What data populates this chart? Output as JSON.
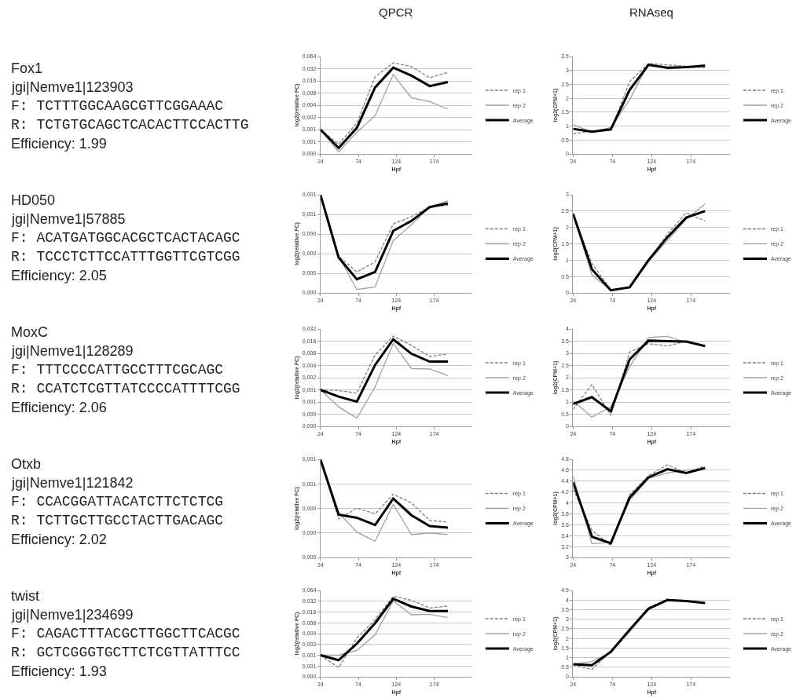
{
  "chart_data": [
    {
      "type": "line",
      "title": "QPCR",
      "xlabel": "Hpf",
      "ylabel": "log2(relative FC)",
      "log": true,
      "grid": "y",
      "legend": "right",
      "x": [
        24,
        48,
        72,
        96,
        120,
        144,
        168,
        192
      ],
      "xlim": [
        24,
        224
      ],
      "xticks": [
        24,
        74,
        124,
        174
      ],
      "ylim": [
        0.00025,
        0.064
      ],
      "yticks": [
        {
          "value": 0.00025,
          "label": "0,000"
        },
        {
          "value": 0.0005,
          "label": "0,001"
        },
        {
          "value": 0.001,
          "label": "0,001"
        },
        {
          "value": 0.002,
          "label": "0,002"
        },
        {
          "value": 0.004,
          "label": "0,004"
        },
        {
          "value": 0.008,
          "label": "0,008"
        },
        {
          "value": 0.016,
          "label": "0,016"
        },
        {
          "value": 0.032,
          "label": "0,032"
        },
        {
          "value": 0.064,
          "label": "0,064"
        }
      ],
      "annotations": [
        "Fox1",
        "jgi|Nemve1|123903",
        "F: TCTTTGGCAAGCGTTCGGAAAC",
        "R: TCTGTGCAGCTCACACTTCCACTTG",
        "Efficiency: 1.99"
      ],
      "series": [
        {
          "name": "rep 1",
          "color": "#7f7f7f",
          "line_style": "dashed",
          "values": [
            0.001,
            0.00043,
            0.00145,
            0.02,
            0.045,
            0.036,
            0.019,
            0.026
          ]
        },
        {
          "name": "rep 2",
          "color": "#a0a0a0",
          "line_style": "solid",
          "values": [
            0.001,
            0.00028,
            0.00086,
            0.0022,
            0.0228,
            0.0061,
            0.0049,
            0.0032
          ]
        },
        {
          "name": "Average",
          "color": "#000000",
          "line_style": "solid",
          "values": [
            0.001,
            0.00035,
            0.0011,
            0.011,
            0.034,
            0.0215,
            0.0119,
            0.0149
          ]
        }
      ]
    },
    {
      "type": "line",
      "title": "RNAseq",
      "xlabel": "Hpf",
      "ylabel": "log2(CPM+1)",
      "grid": "y",
      "legend": "right",
      "x": [
        24,
        48,
        72,
        96,
        120,
        144,
        168,
        192
      ],
      "xlim": [
        24,
        224
      ],
      "xticks": [
        24,
        74,
        124,
        174
      ],
      "ylim": [
        0,
        3.5
      ],
      "yticks": [
        0,
        0.5,
        1,
        1.5,
        2,
        2.5,
        3,
        3.5
      ],
      "series": [
        {
          "name": "rep 1",
          "color": "#7f7f7f",
          "line_style": "dashed",
          "values": [
            0.72,
            0.82,
            0.85,
            2.6,
            3.25,
            3.2,
            3.15,
            3.1
          ]
        },
        {
          "name": "rep 2",
          "color": "#a0a0a0",
          "line_style": "solid",
          "values": [
            1.05,
            0.78,
            0.95,
            1.95,
            3.25,
            3.05,
            3.1,
            3.22
          ]
        },
        {
          "name": "Average",
          "color": "#000000",
          "line_style": "solid",
          "values": [
            0.9,
            0.8,
            0.88,
            2.3,
            3.2,
            3.1,
            3.12,
            3.17
          ]
        }
      ]
    },
    {
      "type": "line",
      "xlabel": "Hpf",
      "ylabel": "log2(relative FC)",
      "log": true,
      "grid": "y",
      "legend": "right",
      "x": [
        24,
        48,
        72,
        96,
        120,
        144,
        168,
        192
      ],
      "xlim": [
        24,
        224
      ],
      "xticks": [
        24,
        74,
        124,
        174
      ],
      "ylim": [
        3.125e-05,
        0.001
      ],
      "yticks": [
        {
          "value": 3.125e-05,
          "label": "0,000"
        },
        {
          "value": 6.25e-05,
          "label": "0,000"
        },
        {
          "value": 0.000125,
          "label": "0,000"
        },
        {
          "value": 0.00025,
          "label": "0,000"
        },
        {
          "value": 0.0005,
          "label": "0,001"
        },
        {
          "value": 0.001,
          "label": "0,001"
        }
      ],
      "annotations": [
        "HD050",
        "jgi|Nemve1|57885",
        "F: ACATGATGGCACGCTCACTACAGC",
        "R: TCCCTCTTCCATTTGGTTCGTCGG",
        "Efficiency: 2.05"
      ],
      "series": [
        {
          "name": "rep 1",
          "color": "#7f7f7f",
          "line_style": "dashed",
          "values": [
            0.001,
            0.000114,
            6.55e-05,
            9.29e-05,
            0.000355,
            0.000464,
            0.000647,
            0.00069
          ]
        },
        {
          "name": "rep 2",
          "color": "#a0a0a0",
          "line_style": "solid",
          "values": [
            0.001,
            0.000114,
            3.52e-05,
            3.86e-05,
            0.000199,
            0.000346,
            0.000647,
            0.000807
          ]
        },
        {
          "name": "Average",
          "color": "#000000",
          "line_style": "solid",
          "values": [
            0.001,
            0.000109,
            5.06e-05,
            6.55e-05,
            0.000279,
            0.000397,
            0.000647,
            0.000737
          ]
        }
      ]
    },
    {
      "type": "line",
      "xlabel": "Hpf",
      "ylabel": "log2(CPM+1)",
      "grid": "y",
      "legend": "right",
      "x": [
        24,
        48,
        72,
        96,
        120,
        144,
        168,
        192
      ],
      "xlim": [
        24,
        224
      ],
      "xticks": [
        24,
        74,
        124,
        174
      ],
      "ylim": [
        0,
        3
      ],
      "yticks": [
        0,
        0.5,
        1,
        1.5,
        2,
        2.5,
        3
      ],
      "series": [
        {
          "name": "rep 1",
          "color": "#7f7f7f",
          "line_style": "dashed",
          "values": [
            2.4,
            0.9,
            0.1,
            0.18,
            1.0,
            1.8,
            2.45,
            2.2
          ]
        },
        {
          "name": "rep 2",
          "color": "#a0a0a0",
          "line_style": "solid",
          "values": [
            2.4,
            0.55,
            0.08,
            0.18,
            0.95,
            1.6,
            2.25,
            2.72
          ]
        },
        {
          "name": "Average",
          "color": "#000000",
          "line_style": "solid",
          "values": [
            2.42,
            0.72,
            0.08,
            0.17,
            1.0,
            1.7,
            2.3,
            2.5
          ]
        }
      ]
    },
    {
      "type": "line",
      "xlabel": "Hpf",
      "ylabel": "log2(relative FC)",
      "log": true,
      "grid": "y",
      "legend": "right",
      "x": [
        24,
        48,
        72,
        96,
        120,
        144,
        168,
        192
      ],
      "xlim": [
        24,
        224
      ],
      "xticks": [
        24,
        74,
        124,
        174
      ],
      "ylim": [
        0.000125,
        0.032
      ],
      "yticks": [
        {
          "value": 0.000125,
          "label": "0,000"
        },
        {
          "value": 0.00025,
          "label": "0,000"
        },
        {
          "value": 0.0005,
          "label": "0,001"
        },
        {
          "value": 0.001,
          "label": "0,001"
        },
        {
          "value": 0.002,
          "label": "0,002"
        },
        {
          "value": 0.004,
          "label": "0,004"
        },
        {
          "value": 0.008,
          "label": "0,008"
        },
        {
          "value": 0.016,
          "label": "0,016"
        },
        {
          "value": 0.032,
          "label": "0,032"
        }
      ],
      "annotations": [
        "MoxC",
        "jgi|Nemve1|128289",
        "F: TTTCCCCATTGCCTTTCGCAGC",
        "R: CCATCTCGTTATCCCCATTTTCGG",
        "Efficiency: 2.06"
      ],
      "series": [
        {
          "name": "rep 1",
          "color": "#7f7f7f",
          "line_style": "dashed",
          "values": [
            0.001,
            0.00096,
            0.00083,
            0.0073,
            0.0214,
            0.0126,
            0.0067,
            0.0077
          ]
        },
        {
          "name": "rep 2",
          "color": "#a0a0a0",
          "line_style": "solid",
          "values": [
            0.001,
            0.00038,
            0.0002,
            0.00118,
            0.0141,
            0.00337,
            0.00327,
            0.00226
          ]
        },
        {
          "name": "Average",
          "color": "#000000",
          "line_style": "solid",
          "values": [
            0.001,
            0.00068,
            0.00051,
            0.0041,
            0.0177,
            0.0078,
            0.005,
            0.005
          ]
        }
      ]
    },
    {
      "type": "line",
      "xlabel": "Hpf",
      "ylabel": "log2(CPM+1)",
      "grid": "y",
      "legend": "right",
      "x": [
        24,
        48,
        72,
        96,
        120,
        144,
        168,
        192
      ],
      "xlim": [
        24,
        224
      ],
      "xticks": [
        24,
        74,
        124,
        174
      ],
      "ylim": [
        0,
        4
      ],
      "yticks": [
        0,
        0.5,
        1,
        1.5,
        2,
        2.5,
        3,
        3.5,
        4
      ],
      "series": [
        {
          "name": "rep 1",
          "color": "#7f7f7f",
          "line_style": "dashed",
          "values": [
            0.7,
            1.72,
            0.45,
            3.05,
            3.4,
            3.3,
            3.5,
            3.28
          ]
        },
        {
          "name": "rep 2",
          "color": "#a0a0a0",
          "line_style": "solid",
          "values": [
            1.05,
            0.38,
            0.8,
            2.45,
            3.65,
            3.7,
            3.45,
            3.3
          ]
        },
        {
          "name": "Average",
          "color": "#000000",
          "line_style": "solid",
          "values": [
            0.92,
            1.2,
            0.62,
            2.75,
            3.52,
            3.5,
            3.48,
            3.3
          ]
        }
      ]
    },
    {
      "type": "line",
      "xlabel": "Hpf",
      "ylabel": "log2(relative FC)",
      "log": true,
      "grid": "y",
      "legend": "right",
      "x": [
        24,
        48,
        72,
        96,
        120,
        144,
        168,
        192
      ],
      "xlim": [
        24,
        224
      ],
      "xticks": [
        24,
        74,
        124,
        174
      ],
      "ylim": [
        6.25e-05,
        0.001
      ],
      "yticks": [
        {
          "value": 6.25e-05,
          "label": "0,000"
        },
        {
          "value": 0.000125,
          "label": "0,000"
        },
        {
          "value": 0.00025,
          "label": "0,000"
        },
        {
          "value": 0.0005,
          "label": "0,001"
        },
        {
          "value": 0.001,
          "label": "0,001"
        }
      ],
      "annotations": [
        "Otxb",
        "jgi|Nemve1|121842",
        "F: CCACGGATTACATCTTCTCTCG",
        "R: TCTTGCTTGCCTACTTGACAGC",
        "Efficiency: 2.02"
      ],
      "series": [
        {
          "name": "rep 1",
          "color": "#7f7f7f",
          "line_style": "dashed",
          "values": [
            0.001,
            0.000185,
            0.000252,
            0.000214,
            0.000373,
            0.000292,
            0.000178,
            0.00017
          ]
        },
        {
          "name": "rep 2",
          "color": "#a0a0a0",
          "line_style": "solid",
          "values": [
            0.001,
            0.000222,
            0.000128,
            9.88e-05,
            0.000281,
            0.000119,
            0.000125,
            0.000119
          ]
        },
        {
          "name": "Average",
          "color": "#000000",
          "line_style": "solid",
          "values": [
            0.001,
            0.00021,
            0.000192,
            0.000156,
            0.00033,
            0.000206,
            0.000152,
            0.000145
          ]
        }
      ]
    },
    {
      "type": "line",
      "xlabel": "Hpf",
      "ylabel": "log2(CPM+1)",
      "grid": "y",
      "legend": "right",
      "x": [
        24,
        48,
        72,
        96,
        120,
        144,
        168,
        192
      ],
      "xlim": [
        24,
        224
      ],
      "xticks": [
        24,
        74,
        124,
        174
      ],
      "ylim": [
        3,
        4.8
      ],
      "yticks": [
        3,
        3.2,
        3.4,
        3.6,
        3.8,
        4,
        4.2,
        4.4,
        4.6,
        4.8
      ],
      "series": [
        {
          "name": "rep 1",
          "color": "#7f7f7f",
          "line_style": "dashed",
          "values": [
            4.25,
            3.5,
            3.22,
            4.15,
            4.5,
            4.7,
            4.55,
            4.68
          ]
        },
        {
          "name": "rep 2",
          "color": "#a0a0a0",
          "line_style": "solid",
          "values": [
            4.5,
            3.25,
            3.28,
            4.05,
            4.45,
            4.55,
            4.6,
            4.63
          ]
        },
        {
          "name": "Average",
          "color": "#000000",
          "line_style": "solid",
          "values": [
            4.38,
            3.38,
            3.26,
            4.1,
            4.47,
            4.62,
            4.55,
            4.64
          ]
        }
      ]
    },
    {
      "type": "line",
      "xlabel": "Hpf",
      "ylabel": "log2(relative FC)",
      "log": true,
      "grid": "y",
      "legend": "right",
      "x": [
        24,
        48,
        72,
        96,
        120,
        144,
        168,
        192
      ],
      "xlim": [
        24,
        224
      ],
      "xticks": [
        24,
        74,
        124,
        174
      ],
      "ylim": [
        0.00025,
        0.064
      ],
      "yticks": [
        {
          "value": 0.00025,
          "label": "0,000"
        },
        {
          "value": 0.0005,
          "label": "0,001"
        },
        {
          "value": 0.001,
          "label": "0,001"
        },
        {
          "value": 0.002,
          "label": "0,002"
        },
        {
          "value": 0.004,
          "label": "0,004"
        },
        {
          "value": 0.008,
          "label": "0,008"
        },
        {
          "value": 0.016,
          "label": "0,016"
        },
        {
          "value": 0.032,
          "label": "0,032"
        },
        {
          "value": 0.064,
          "label": "0,064"
        }
      ],
      "annotations": [
        "twist",
        "jgi|Nemve1|234699",
        "F: CAGACTTTACGCTTGGCTTCACGC",
        "R: GCTCGGGTGCTTCTCGTTATTTCC",
        "Efficiency: 1.93"
      ],
      "series": [
        {
          "name": "rep 1",
          "color": "#7f7f7f",
          "line_style": "dashed",
          "values": [
            0.001,
            0.00045,
            0.003,
            0.0097,
            0.044,
            0.034,
            0.0208,
            0.0235
          ]
        },
        {
          "name": "rep 2",
          "color": "#a0a0a0",
          "line_style": "solid",
          "values": [
            0.001,
            0.001,
            0.00136,
            0.0037,
            0.0325,
            0.0134,
            0.0138,
            0.0112
          ]
        },
        {
          "name": "Average",
          "color": "#000000",
          "line_style": "solid",
          "values": [
            0.001,
            0.00073,
            0.0021,
            0.0078,
            0.0376,
            0.0228,
            0.017,
            0.017
          ]
        }
      ]
    },
    {
      "type": "line",
      "xlabel": "Hpf",
      "ylabel": "log2(CPM+1)",
      "grid": "y",
      "legend": "right",
      "x": [
        24,
        48,
        72,
        96,
        120,
        144,
        168,
        192
      ],
      "xlim": [
        24,
        224
      ],
      "xticks": [
        24,
        74,
        124,
        174
      ],
      "ylim": [
        0,
        4.5
      ],
      "yticks": [
        0,
        0.5,
        1,
        1.5,
        2,
        2.5,
        3,
        3.5,
        4,
        4.5
      ],
      "series": [
        {
          "name": "rep 1",
          "color": "#7f7f7f",
          "line_style": "dashed",
          "values": [
            0.62,
            0.38,
            1.35,
            2.5,
            3.6,
            4.05,
            3.95,
            3.85
          ]
        },
        {
          "name": "rep 2",
          "color": "#a0a0a0",
          "line_style": "solid",
          "values": [
            0.65,
            0.8,
            1.25,
            2.35,
            3.5,
            3.95,
            3.95,
            3.85
          ]
        },
        {
          "name": "Average",
          "color": "#000000",
          "line_style": "solid",
          "values": [
            0.65,
            0.6,
            1.3,
            2.45,
            3.55,
            4.0,
            3.95,
            3.85
          ]
        }
      ]
    }
  ]
}
